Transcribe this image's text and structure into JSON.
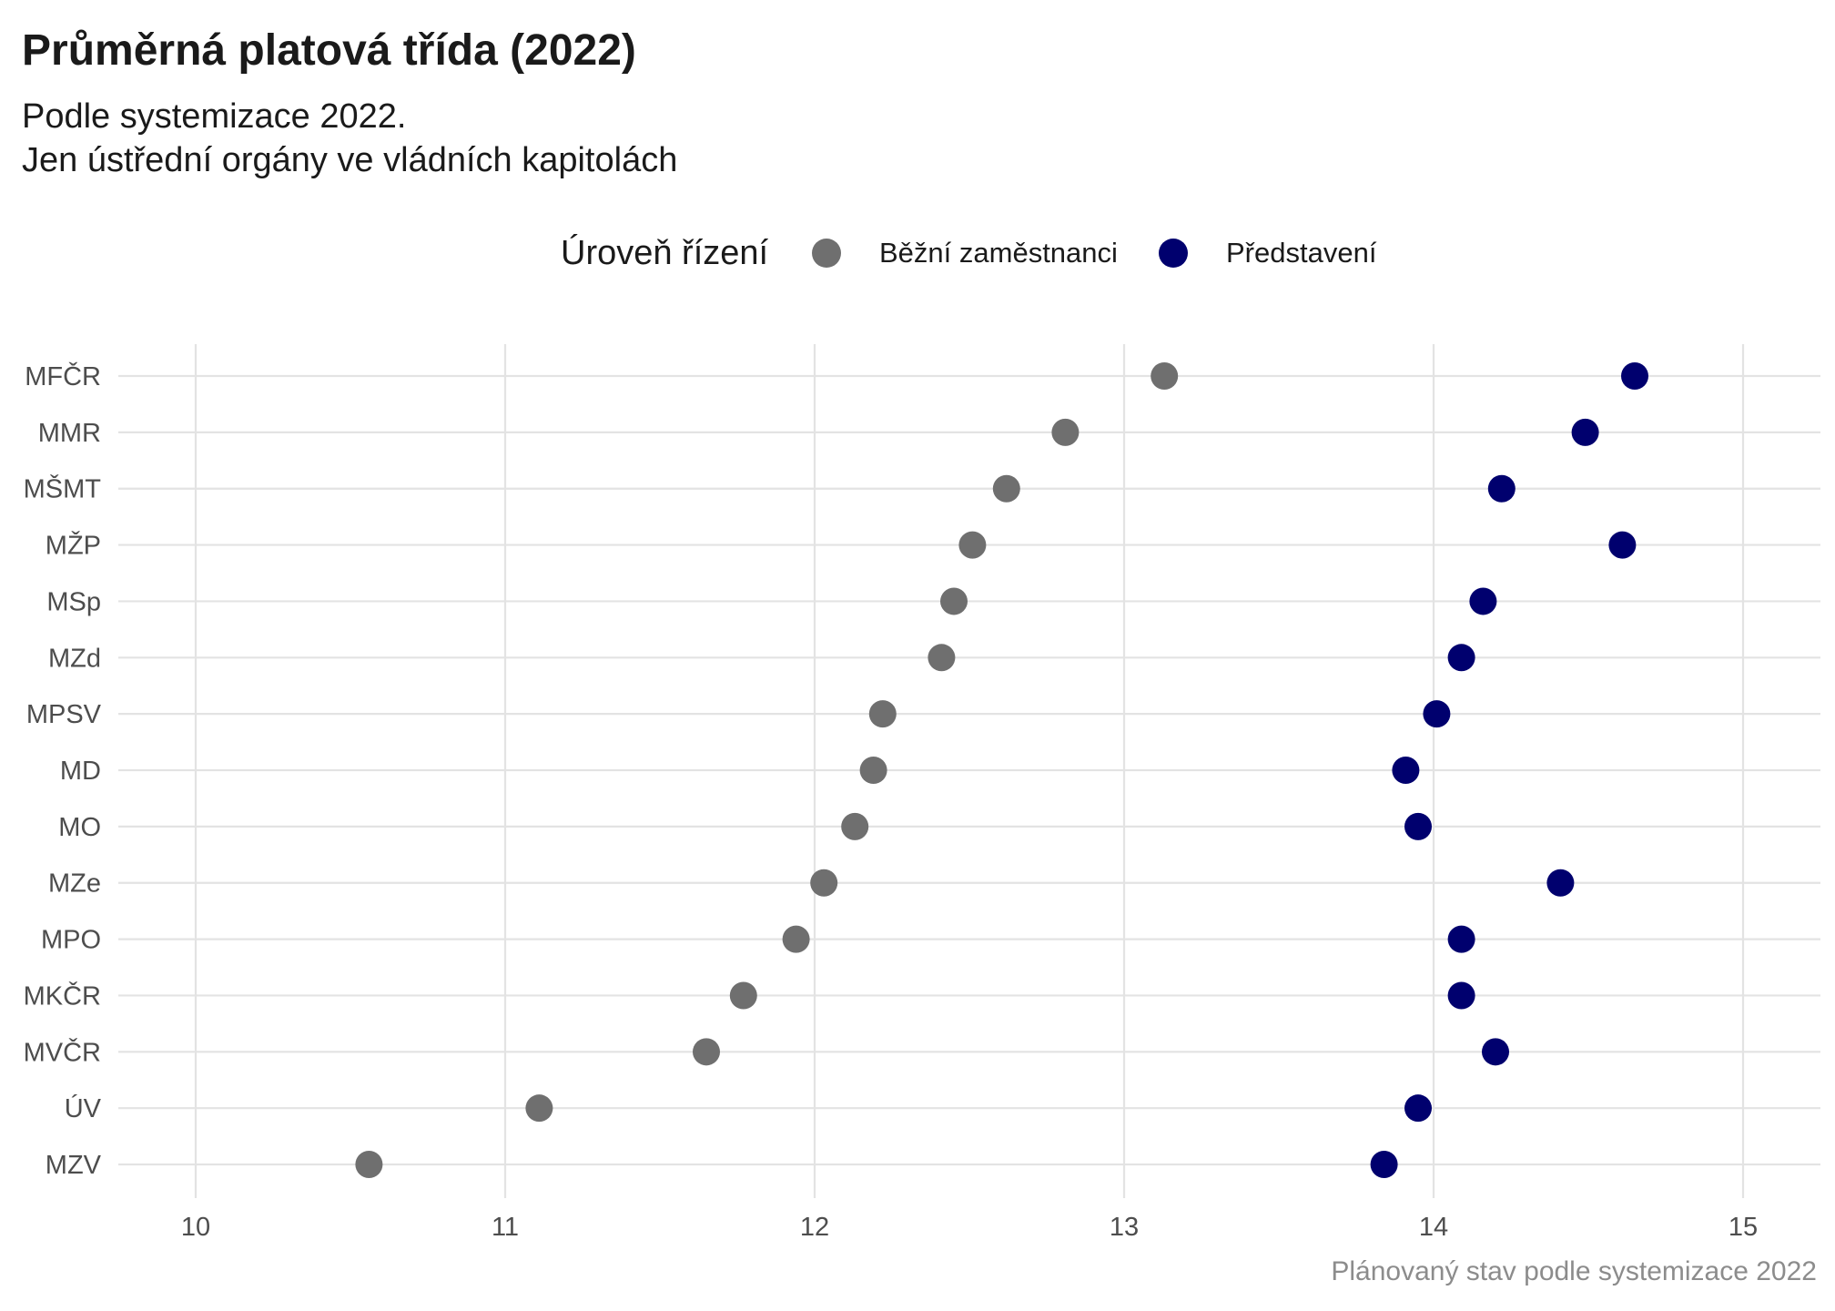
{
  "legend": {
    "title": "Úroveň řízení",
    "items": [
      {
        "label": "Běžní zaměstnanci",
        "color": "#6f6f6f"
      },
      {
        "label": "Představení",
        "color": "#00006e"
      }
    ]
  },
  "caption": "Plánovaný stav podle systemizace 2022",
  "chart_data": {
    "type": "scatter",
    "title": "Průměrná platová třída (2022)",
    "subtitle_lines": [
      "Podle systemizace 2022.",
      "Jen ústřední orgány ve vládních kapitolách"
    ],
    "xlabel": "",
    "ylabel": "",
    "xlim": [
      9.75,
      15.25
    ],
    "x_ticks": [
      10,
      11,
      12,
      13,
      14,
      15
    ],
    "grid": true,
    "legend_position": "top",
    "categories": [
      "MFČR",
      "MMR",
      "MŠMT",
      "MŽP",
      "MSp",
      "MZd",
      "MPSV",
      "MD",
      "MO",
      "MZe",
      "MPO",
      "MKČR",
      "MVČR",
      "ÚV",
      "MZV"
    ],
    "series": [
      {
        "name": "Běžní zaměstnanci",
        "color": "#6f6f6f",
        "values": [
          13.13,
          12.81,
          12.62,
          12.51,
          12.45,
          12.41,
          12.22,
          12.19,
          12.13,
          12.03,
          11.94,
          11.77,
          11.65,
          11.11,
          10.56
        ]
      },
      {
        "name": "Představení",
        "color": "#00006e",
        "values": [
          14.65,
          14.49,
          14.22,
          14.61,
          14.16,
          14.09,
          14.01,
          13.91,
          13.95,
          14.41,
          14.09,
          14.09,
          14.2,
          13.95,
          13.84
        ]
      }
    ]
  }
}
